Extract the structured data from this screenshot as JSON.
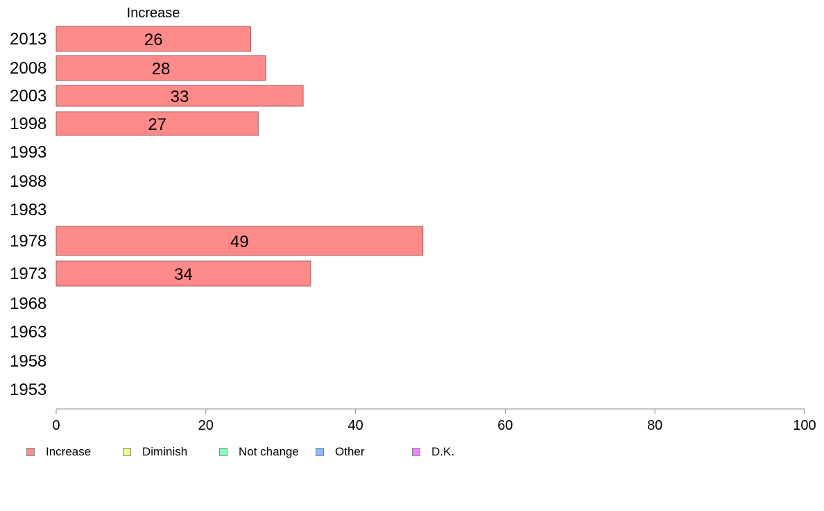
{
  "chart_data": {
    "type": "bar",
    "orientation": "horizontal",
    "categories": [
      "2013",
      "2008",
      "2003",
      "1998",
      "1993",
      "1988",
      "1983",
      "1978",
      "1973",
      "1968",
      "1963",
      "1958",
      "1953"
    ],
    "series": [
      {
        "name": "Increase",
        "color": "#ff8a8a",
        "values": [
          26,
          28,
          33,
          27,
          null,
          null,
          null,
          49,
          34,
          null,
          null,
          null,
          null
        ]
      }
    ],
    "series_header": "Increase",
    "xlim": [
      0,
      100
    ],
    "xticks": [
      0,
      20,
      40,
      60,
      80,
      100
    ],
    "legend": [
      {
        "label": "Increase",
        "color": "#ff8a8a"
      },
      {
        "label": "Diminish",
        "color": "#eeff88"
      },
      {
        "label": "Not change",
        "color": "#88ffbb"
      },
      {
        "label": "Other",
        "color": "#88bbff"
      },
      {
        "label": "D.K.",
        "color": "#ee88ff"
      }
    ],
    "legend_position": "bottom-left",
    "grid": false
  }
}
